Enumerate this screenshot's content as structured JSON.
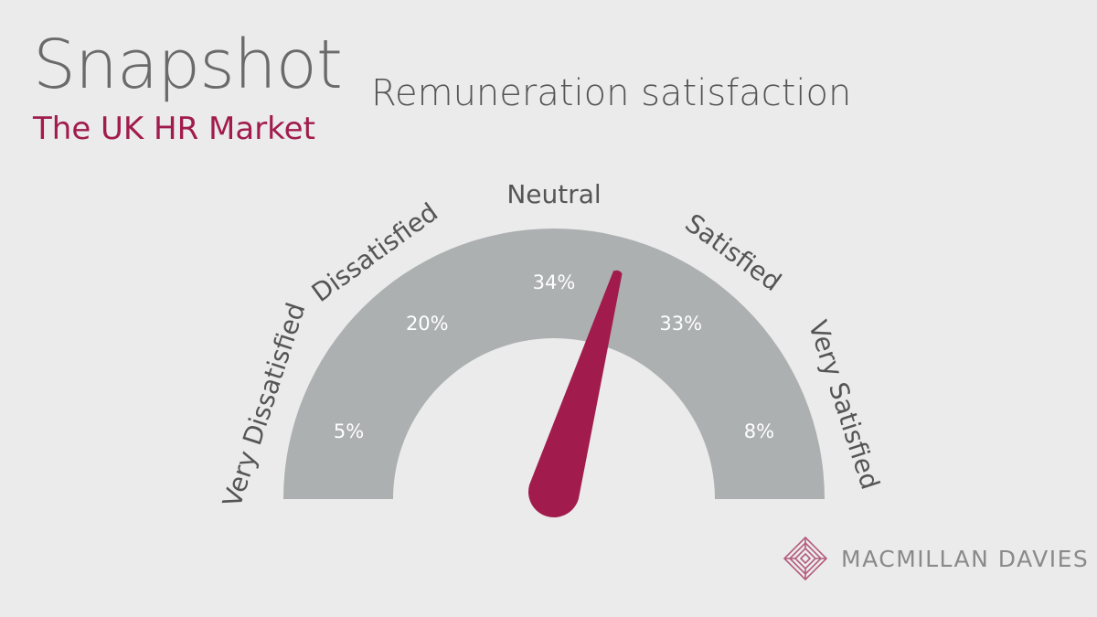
{
  "header": {
    "title": "Snapshot",
    "subtitle": "The UK HR Market",
    "chart_heading": "Remuneration satisfaction"
  },
  "brand": {
    "name": "MACMILLAN DAVIES",
    "accent_color": "#a11c4c",
    "icon": "maze-diamond-logo-icon"
  },
  "chart_data": {
    "type": "gauge",
    "title": "Remuneration satisfaction",
    "categories": [
      "Very Dissatisfied",
      "Dissatisfied",
      "Neutral",
      "Satisfied",
      "Very Satisfied"
    ],
    "values": [
      5,
      20,
      34,
      33,
      8
    ],
    "value_labels": [
      "5%",
      "20%",
      "34%",
      "33%",
      "8%"
    ],
    "needle_position_percent": 59,
    "colors": {
      "arc": "#adb0b1",
      "needle": "#a11c4c",
      "value_text": "#ffffff",
      "category_text": "#555555"
    }
  }
}
